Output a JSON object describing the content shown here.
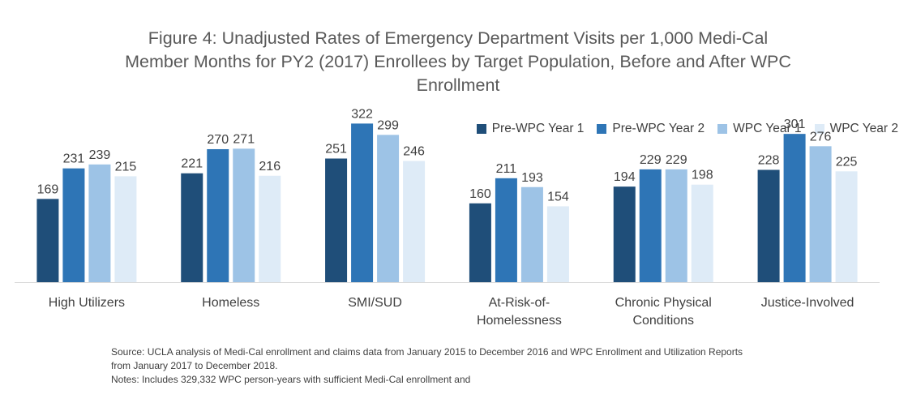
{
  "chart_data": {
    "type": "bar",
    "title": [
      "Figure 4: Unadjusted Rates of Emergency Department Visits per 1,000 Medi-Cal",
      "Member Months for PY2 (2017) Enrollees by Target Population, Before and After WPC",
      "Enrollment"
    ],
    "categories": [
      [
        "High Utilizers"
      ],
      [
        "Homeless"
      ],
      [
        "SMI/SUD"
      ],
      [
        "At-Risk-of-",
        "Homelessness"
      ],
      [
        "Chronic Physical",
        "Conditions"
      ],
      [
        "Justice-Involved"
      ]
    ],
    "series": [
      {
        "name": "Pre-WPC Year 1",
        "color": "#1f4e79",
        "values": [
          169,
          221,
          251,
          160,
          194,
          228
        ]
      },
      {
        "name": "Pre-WPC Year 2",
        "color": "#2e75b6",
        "values": [
          231,
          270,
          322,
          211,
          229,
          301
        ]
      },
      {
        "name": "WPC Year 1",
        "color": "#9dc3e6",
        "values": [
          239,
          271,
          299,
          193,
          229,
          276
        ]
      },
      {
        "name": "WPC Year 2",
        "color": "#deebf7",
        "values": [
          215,
          216,
          246,
          154,
          198,
          225
        ]
      }
    ],
    "ylim": [
      0,
      400
    ],
    "grid": false,
    "legend_position": "top-right",
    "data_labels": true
  },
  "notes": {
    "source_line1": "Source: UCLA analysis of Medi-Cal enrollment and claims data from January 2015  to December 2016 and WPC Enrollment and Utilization Reports",
    "source_line2": "from January 2017  to December 2018.",
    "notes_line": "Notes: Includes 329,332  WPC person-years with sufficient Medi-Cal enrollment and"
  }
}
